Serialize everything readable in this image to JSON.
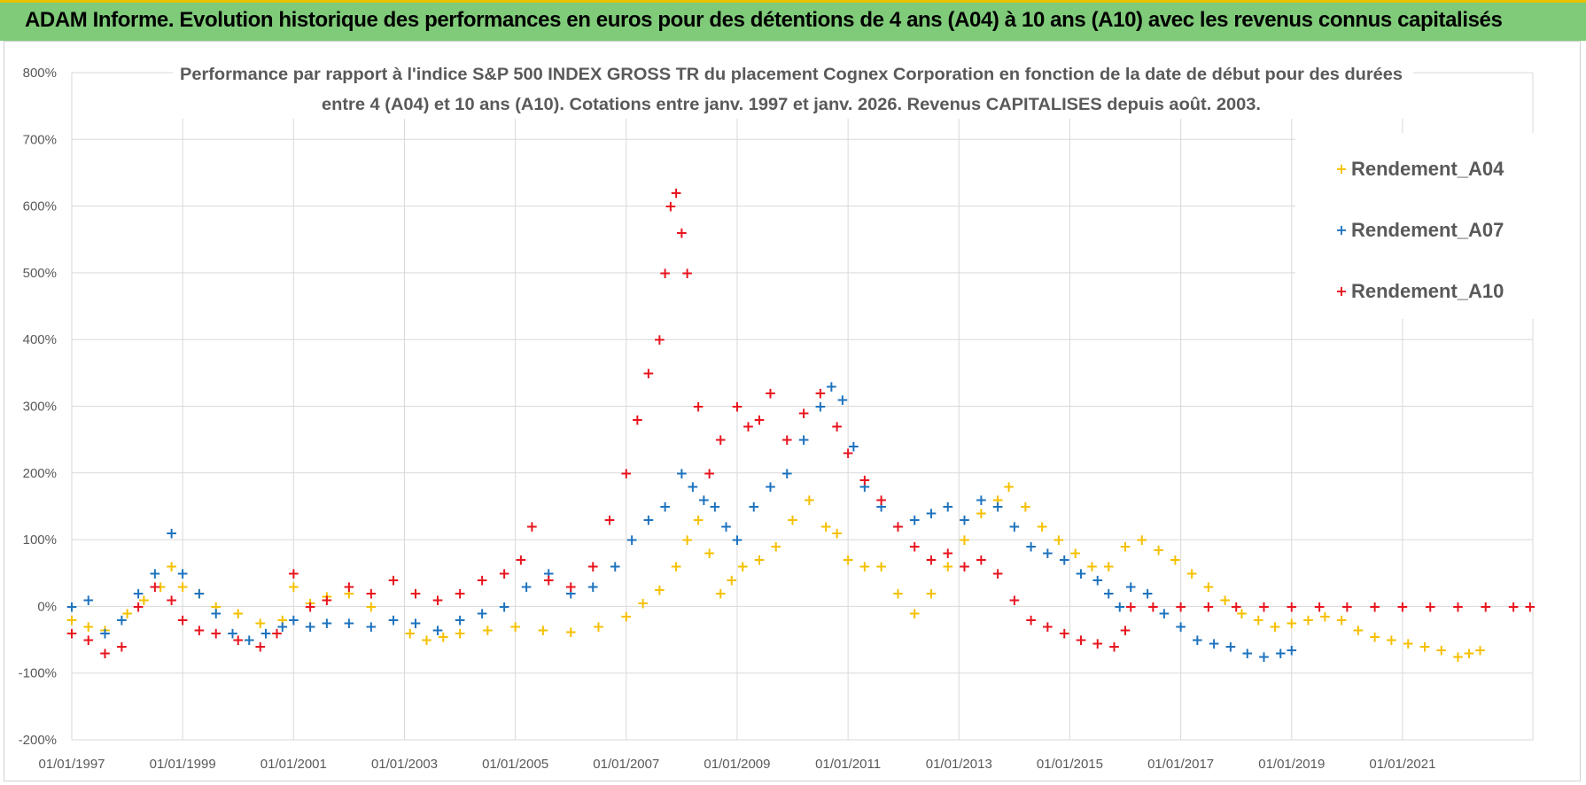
{
  "banner": {
    "title": "ADAM Informe. Evolution historique des performances en euros pour des détentions de 4 ans (A04) à 10 ans (A10) avec les revenus connus capitalisés"
  },
  "colors": {
    "banner_bg": "#7fcb79",
    "banner_accent": "#e6c200",
    "a04": "#f5c000",
    "a07": "#1e73be",
    "a10": "#e8141e",
    "grid": "#d9d9d9",
    "text": "#595959"
  },
  "chart_data": {
    "type": "scatter",
    "title_line1": "Performance par rapport à l'indice S&P 500 INDEX GROSS TR  du placement Cognex Corporation en fonction de la date de début pour des durées",
    "title_line2": "entre 4 (A04) et 10 ans (A10).  Cotations entre janv. 1997 et janv. 2026. Revenus CAPITALISES depuis août. 2003.",
    "xlabel": "",
    "ylabel": "",
    "xlim": [
      1997.0,
      2023.35
    ],
    "ylim": [
      -200,
      800
    ],
    "y_ticks": [
      -200,
      -100,
      0,
      100,
      200,
      300,
      400,
      500,
      600,
      700,
      800
    ],
    "y_tick_labels": [
      "-200%",
      "-100%",
      "0%",
      "100%",
      "200%",
      "300%",
      "400%",
      "500%",
      "600%",
      "700%",
      "800%"
    ],
    "x_ticks": [
      1997,
      1999,
      2001,
      2003,
      2005,
      2007,
      2009,
      2011,
      2013,
      2015,
      2017,
      2019,
      2021
    ],
    "x_tick_labels": [
      "01/01/1997",
      "01/01/1999",
      "01/01/2001",
      "01/01/2003",
      "01/01/2005",
      "01/01/2007",
      "01/01/2009",
      "01/01/2011",
      "01/01/2013",
      "01/01/2015",
      "01/01/2017",
      "01/01/2019",
      "01/01/2021"
    ],
    "legend_position": "top-right",
    "series": [
      {
        "name": "Rendement_A04",
        "color": "#f5c000",
        "x": [
          1997.0,
          1997.3,
          1997.6,
          1998.0,
          1998.3,
          1998.6,
          1998.8,
          1999.0,
          1999.3,
          1999.6,
          2000.0,
          2000.4,
          2000.8,
          2001.0,
          2001.3,
          2001.6,
          2002.0,
          2002.4,
          2002.8,
          2003.1,
          2003.4,
          2003.7,
          2004.0,
          2004.5,
          2005.0,
          2005.5,
          2006.0,
          2006.5,
          2007.0,
          2007.3,
          2007.6,
          2007.9,
          2008.1,
          2008.3,
          2008.5,
          2008.7,
          2008.9,
          2009.1,
          2009.4,
          2009.7,
          2010.0,
          2010.3,
          2010.6,
          2010.8,
          2011.0,
          2011.3,
          2011.6,
          2011.9,
          2012.2,
          2012.5,
          2012.8,
          2013.1,
          2013.4,
          2013.7,
          2013.9,
          2014.2,
          2014.5,
          2014.8,
          2015.1,
          2015.4,
          2015.7,
          2016.0,
          2016.3,
          2016.6,
          2016.9,
          2017.2,
          2017.5,
          2017.8,
          2018.1,
          2018.4,
          2018.7,
          2019.0,
          2019.3,
          2019.6,
          2019.9,
          2020.2,
          2020.5,
          2020.8,
          2021.1,
          2021.4,
          2021.7,
          2022.0,
          2022.2,
          2022.4
        ],
        "values": [
          -20,
          -30,
          -35,
          -10,
          10,
          30,
          60,
          30,
          20,
          0,
          -10,
          -25,
          -20,
          30,
          5,
          15,
          20,
          0,
          -20,
          -40,
          -50,
          -45,
          -40,
          -35,
          -30,
          -35,
          -38,
          -30,
          -15,
          5,
          25,
          60,
          100,
          130,
          80,
          20,
          40,
          60,
          70,
          90,
          130,
          160,
          120,
          110,
          70,
          60,
          60,
          20,
          -10,
          20,
          60,
          100,
          140,
          160,
          180,
          150,
          120,
          100,
          80,
          60,
          60,
          90,
          100,
          85,
          70,
          50,
          30,
          10,
          -10,
          -20,
          -30,
          -25,
          -20,
          -15,
          -20,
          -35,
          -45,
          -50,
          -55,
          -60,
          -65,
          -75,
          -70,
          -65
        ]
      },
      {
        "name": "Rendement_A07",
        "color": "#1e73be",
        "x": [
          1997.0,
          1997.3,
          1997.6,
          1997.9,
          1998.2,
          1998.5,
          1998.8,
          1999.0,
          1999.3,
          1999.6,
          1999.9,
          2000.2,
          2000.5,
          2000.8,
          2001.0,
          2001.3,
          2001.6,
          2002.0,
          2002.4,
          2002.8,
          2003.2,
          2003.6,
          2004.0,
          2004.4,
          2004.8,
          2005.2,
          2005.6,
          2006.0,
          2006.4,
          2006.8,
          2007.1,
          2007.4,
          2007.7,
          2008.0,
          2008.2,
          2008.4,
          2008.6,
          2008.8,
          2009.0,
          2009.3,
          2009.6,
          2009.9,
          2010.2,
          2010.5,
          2010.7,
          2010.9,
          2011.1,
          2011.3,
          2011.6,
          2011.9,
          2012.2,
          2012.5,
          2012.8,
          2013.1,
          2013.4,
          2013.7,
          2014.0,
          2014.3,
          2014.6,
          2014.9,
          2015.2,
          2015.5,
          2015.7,
          2015.9,
          2016.1,
          2016.4,
          2016.7,
          2017.0,
          2017.3,
          2017.6,
          2017.9,
          2018.2,
          2018.5,
          2018.8,
          2019.0
        ],
        "values": [
          0,
          10,
          -40,
          -20,
          20,
          50,
          110,
          50,
          20,
          -10,
          -40,
          -50,
          -40,
          -30,
          -20,
          -30,
          -25,
          -25,
          -30,
          -20,
          -25,
          -35,
          -20,
          -10,
          0,
          30,
          50,
          20,
          30,
          60,
          100,
          130,
          150,
          200,
          180,
          160,
          150,
          120,
          100,
          150,
          180,
          200,
          250,
          300,
          330,
          310,
          240,
          180,
          150,
          120,
          130,
          140,
          150,
          130,
          160,
          150,
          120,
          90,
          80,
          70,
          50,
          40,
          20,
          0,
          30,
          20,
          -10,
          -30,
          -50,
          -55,
          -60,
          -70,
          -75,
          -70,
          -65
        ]
      },
      {
        "name": "Rendement_A10",
        "color": "#e8141e",
        "x": [
          1997.0,
          1997.3,
          1997.6,
          1997.9,
          1998.2,
          1998.5,
          1998.8,
          1999.0,
          1999.3,
          1999.6,
          2000.0,
          2000.4,
          2000.7,
          2001.0,
          2001.3,
          2001.6,
          2002.0,
          2002.4,
          2002.8,
          2003.2,
          2003.6,
          2004.0,
          2004.4,
          2004.8,
          2005.1,
          2005.3,
          2005.6,
          2006.0,
          2006.4,
          2006.7,
          2007.0,
          2007.2,
          2007.4,
          2007.6,
          2007.7,
          2007.8,
          2007.9,
          2008.0,
          2008.1,
          2008.3,
          2008.5,
          2008.7,
          2009.0,
          2009.2,
          2009.4,
          2009.6,
          2009.9,
          2010.2,
          2010.5,
          2010.8,
          2011.0,
          2011.3,
          2011.6,
          2011.9,
          2012.2,
          2012.5,
          2012.8,
          2013.1,
          2013.4,
          2013.7,
          2014.0,
          2014.3,
          2014.6,
          2014.9,
          2015.2,
          2015.5,
          2015.8,
          2016.0,
          2016.1,
          2016.5,
          2017.0,
          2017.5,
          2018.0,
          2018.5,
          2019.0,
          2019.5,
          2020.0,
          2020.5,
          2021.0,
          2021.5,
          2022.0,
          2022.5,
          2023.0,
          2023.3
        ],
        "values": [
          -40,
          -50,
          -70,
          -60,
          0,
          30,
          10,
          -20,
          -35,
          -40,
          -50,
          -60,
          -40,
          50,
          0,
          10,
          30,
          20,
          40,
          20,
          10,
          20,
          40,
          50,
          70,
          120,
          40,
          30,
          60,
          130,
          200,
          280,
          350,
          400,
          500,
          600,
          620,
          560,
          500,
          300,
          200,
          250,
          300,
          270,
          280,
          320,
          250,
          290,
          320,
          270,
          230,
          190,
          160,
          120,
          90,
          70,
          80,
          60,
          70,
          50,
          10,
          -20,
          -30,
          -40,
          -50,
          -55,
          -60,
          -35,
          0,
          0,
          0,
          0,
          0,
          0,
          0,
          0,
          0,
          0,
          0,
          0,
          0,
          0,
          0,
          0
        ]
      }
    ]
  }
}
